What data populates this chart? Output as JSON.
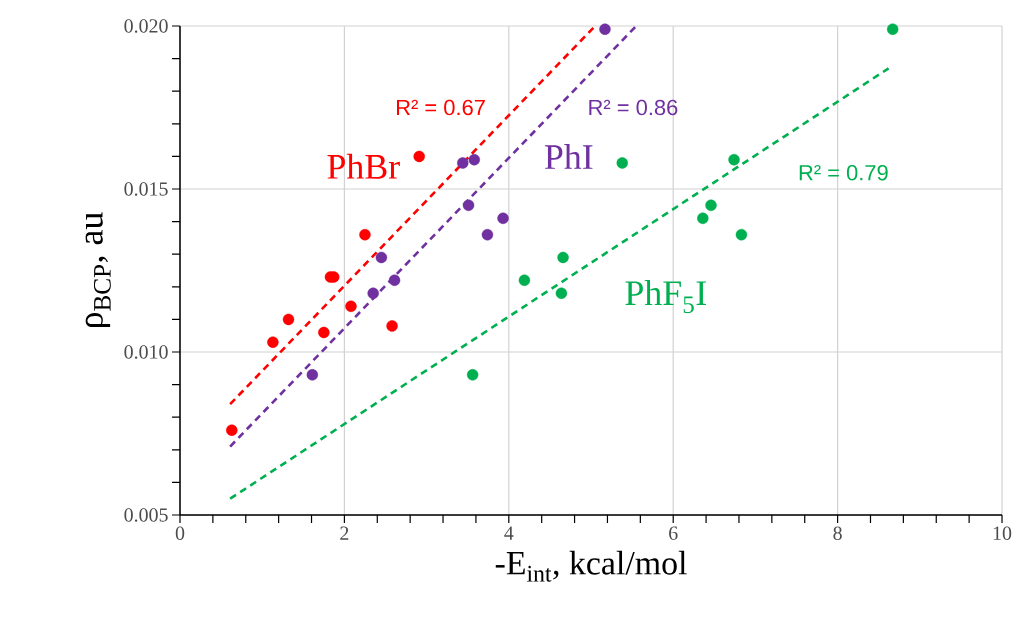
{
  "chart_data": {
    "type": "scatter",
    "xlabel": "-E$_{int}$, kcal/mol",
    "ylabel": "ρ$_{BCP}$, au",
    "xlim": [
      0,
      10
    ],
    "xticks": [
      0,
      2,
      4,
      6,
      8,
      10
    ],
    "ylim": [
      0.005,
      0.02
    ],
    "yticks": [
      0.005,
      {
        "value": 0.01,
        "label": "0.010"
      },
      0.015,
      {
        "value": 0.02,
        "label": "0.020"
      }
    ],
    "grid": true,
    "marker": "circle",
    "series": [
      {
        "name": "PhBr",
        "color": "#ff0000",
        "x": [
          0.63,
          1.13,
          1.32,
          1.75,
          1.83,
          1.87,
          2.08,
          2.25,
          2.58,
          2.91
        ],
        "values": [
          0.0076,
          0.0103,
          0.011,
          0.0106,
          0.0123,
          0.0123,
          0.0114,
          0.0136,
          0.0108,
          0.016
        ]
      },
      {
        "name": "PhI",
        "color": "#7030a0",
        "x": [
          1.61,
          2.35,
          2.45,
          2.61,
          3.44,
          3.58,
          3.51,
          3.74,
          3.93,
          5.17
        ],
        "values": [
          0.0093,
          0.0118,
          0.0129,
          0.0122,
          0.0158,
          0.0159,
          0.0145,
          0.0136,
          0.0141,
          0.0199
        ]
      },
      {
        "name": "PhF$_{5}$I",
        "color": "#00b050",
        "x": [
          3.56,
          4.19,
          4.66,
          4.64,
          5.38,
          6.74,
          6.46,
          6.36,
          6.83,
          8.67
        ],
        "values": [
          0.0093,
          0.0122,
          0.0129,
          0.0118,
          0.0158,
          0.0159,
          0.0145,
          0.0141,
          0.0136,
          0.0199
        ]
      },
      {
        "type": "line",
        "marker": "none",
        "line_style": "dashed",
        "color": "#ff0000",
        "x": [
          0.61,
          5.05
        ],
        "values": [
          0.0084,
          0.02
        ]
      },
      {
        "type": "line",
        "marker": "none",
        "line_style": "dashed",
        "color": "#7030a0",
        "x": [
          0.61,
          5.55
        ],
        "values": [
          0.0071,
          0.02
        ]
      },
      {
        "type": "line",
        "marker": "none",
        "line_style": "dashed",
        "color": "#00b050",
        "x": [
          0.61,
          8.62
        ],
        "values": [
          0.0055,
          0.0187
        ]
      }
    ],
    "annotations": [
      "R² = 0.67",
      "R² = 0.86",
      "R² = 0.79"
    ]
  }
}
